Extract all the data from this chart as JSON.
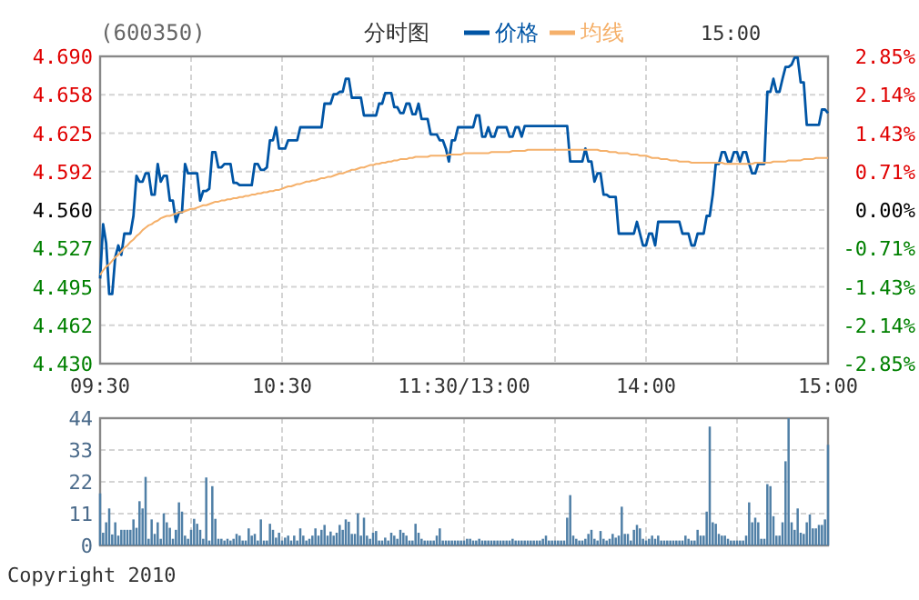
{
  "chart_data": [
    {
      "type": "line",
      "title": "(600350)",
      "subtitle": "分时图",
      "annotations": [
        "15:00"
      ],
      "legend": "top",
      "grid": true,
      "categories": [
        "09:30",
        null,
        null,
        null,
        null,
        null,
        null,
        null,
        null,
        null,
        null,
        null,
        null,
        null,
        null,
        null,
        null,
        null,
        null,
        null,
        null,
        null,
        null,
        null,
        null,
        null,
        null,
        null,
        null,
        null,
        null,
        null,
        null,
        null,
        null,
        null,
        null,
        null,
        null,
        null,
        null,
        null,
        null,
        null,
        null,
        null,
        null,
        null,
        null,
        null,
        null,
        null,
        null,
        null,
        null,
        null,
        null,
        null,
        null,
        null,
        "10:30",
        null,
        null,
        null,
        null,
        null,
        null,
        null,
        null,
        null,
        null,
        null,
        null,
        null,
        null,
        null,
        null,
        null,
        null,
        null,
        null,
        null,
        null,
        null,
        null,
        null,
        null,
        null,
        null,
        null,
        null,
        null,
        null,
        null,
        null,
        null,
        null,
        null,
        null,
        null,
        null,
        null,
        null,
        null,
        null,
        null,
        null,
        null,
        null,
        null,
        null,
        null,
        null,
        null,
        null,
        null,
        null,
        null,
        null,
        null,
        "11:30/13:00",
        null,
        null,
        null,
        null,
        null,
        null,
        null,
        null,
        null,
        null,
        null,
        null,
        null,
        null,
        null,
        null,
        null,
        null,
        null,
        null,
        null,
        null,
        null,
        null,
        null,
        null,
        null,
        null,
        null,
        null,
        null,
        null,
        null,
        null,
        null,
        null,
        null,
        null,
        null,
        null,
        null,
        null,
        null,
        null,
        null,
        null,
        null,
        null,
        null,
        null,
        null,
        null,
        null,
        null,
        null,
        null,
        null,
        null,
        null,
        "14:00",
        null,
        null,
        null,
        null,
        null,
        null,
        null,
        null,
        null,
        null,
        null,
        null,
        null,
        null,
        null,
        null,
        null,
        null,
        null,
        null,
        null,
        null,
        null,
        null,
        null,
        null,
        null,
        null,
        null,
        null,
        null,
        null,
        null,
        null,
        null,
        null,
        null,
        null,
        null,
        null,
        null,
        null,
        null,
        null,
        null,
        null,
        null,
        null,
        null,
        null,
        null,
        null,
        null,
        null,
        null,
        null,
        null,
        null,
        null,
        "15:00"
      ],
      "ylim": [
        4.43,
        4.69
      ],
      "yticks": [
        {
          "value": 4.69,
          "label": "4.690"
        },
        {
          "value": 4.6575,
          "label": "4.658"
        },
        {
          "value": 4.625,
          "label": "4.625"
        },
        {
          "value": 4.5925,
          "label": "4.592"
        },
        {
          "value": 4.56,
          "label": "4.560"
        },
        {
          "value": 4.5275,
          "label": "4.527"
        },
        {
          "value": 4.495,
          "label": "4.495"
        },
        {
          "value": 4.4625,
          "label": "4.462"
        },
        {
          "value": 4.43,
          "label": "4.430"
        }
      ],
      "y2lim": [
        -2.85,
        2.85
      ],
      "y2ticks": [
        {
          "value": 2.85,
          "label": "2.85%"
        },
        {
          "value": 2.1375,
          "label": "2.14%"
        },
        {
          "value": 1.425,
          "label": "1.43%"
        },
        {
          "value": 0.7125,
          "label": "0.71%"
        },
        {
          "value": 0,
          "label": "0.00%"
        },
        {
          "value": -0.7125,
          "label": "-0.71%"
        },
        {
          "value": -1.425,
          "label": "-1.43%"
        },
        {
          "value": -2.1375,
          "label": "-2.14%"
        },
        {
          "value": -2.85,
          "label": "-2.85%"
        }
      ],
      "series": [
        {
          "name": "价格",
          "color": "#0055a5",
          "values": [
            4.502,
            4.548,
            4.532,
            4.489,
            4.489,
            4.52,
            4.53,
            4.522,
            4.54,
            4.54,
            4.54,
            4.555,
            4.589,
            4.584,
            4.584,
            4.591,
            4.591,
            4.573,
            4.573,
            4.599,
            4.584,
            4.589,
            4.589,
            4.568,
            4.568,
            4.55,
            4.558,
            4.558,
            4.599,
            4.591,
            4.591,
            4.591,
            4.591,
            4.568,
            4.576,
            4.576,
            4.578,
            4.609,
            4.609,
            4.596,
            4.596,
            4.599,
            4.599,
            4.599,
            4.583,
            4.583,
            4.581,
            4.581,
            4.581,
            4.581,
            4.581,
            4.599,
            4.599,
            4.594,
            4.594,
            4.596,
            4.619,
            4.619,
            4.63,
            4.612,
            4.612,
            4.612,
            4.619,
            4.619,
            4.619,
            4.619,
            4.63,
            4.63,
            4.63,
            4.63,
            4.63,
            4.63,
            4.63,
            4.63,
            4.65,
            4.65,
            4.65,
            4.658,
            4.658,
            4.66,
            4.66,
            4.671,
            4.671,
            4.655,
            4.655,
            4.655,
            4.655,
            4.64,
            4.64,
            4.64,
            4.64,
            4.64,
            4.65,
            4.65,
            4.659,
            4.659,
            4.659,
            4.647,
            4.647,
            4.642,
            4.642,
            4.65,
            4.65,
            4.641,
            4.641,
            4.65,
            4.637,
            4.637,
            4.637,
            4.624,
            4.624,
            4.624,
            4.619,
            4.619,
            4.612,
            4.601,
            4.619,
            4.619,
            4.63,
            4.63,
            4.63,
            4.63,
            4.63,
            4.63,
            4.64,
            4.64,
            4.622,
            4.622,
            4.63,
            4.622,
            4.622,
            4.63,
            4.63,
            4.63,
            4.63,
            4.622,
            4.622,
            4.63,
            4.63,
            4.622,
            4.631,
            4.631,
            4.631,
            4.631,
            4.631,
            4.631,
            4.631,
            4.631,
            4.631,
            4.631,
            4.631,
            4.631,
            4.631,
            4.631,
            4.631,
            4.601,
            4.601,
            4.601,
            4.601,
            4.601,
            4.612,
            4.601,
            4.601,
            4.584,
            4.591,
            4.591,
            4.573,
            4.573,
            4.571,
            4.571,
            4.571,
            4.54,
            4.54,
            4.54,
            4.54,
            4.54,
            4.54,
            4.55,
            4.54,
            4.53,
            4.53,
            4.54,
            4.54,
            4.53,
            4.55,
            4.55,
            4.55,
            4.55,
            4.55,
            4.55,
            4.55,
            4.55,
            4.54,
            4.54,
            4.54,
            4.53,
            4.53,
            4.54,
            4.54,
            4.54,
            4.555,
            4.555,
            4.573,
            4.599,
            4.599,
            4.609,
            4.609,
            4.601,
            4.601,
            4.609,
            4.609,
            4.601,
            4.609,
            4.609,
            4.599,
            4.591,
            4.591,
            4.599,
            4.599,
            4.599,
            4.66,
            4.66,
            4.671,
            4.66,
            4.66,
            4.671,
            4.681,
            4.681,
            4.683,
            4.689,
            4.689,
            4.668,
            4.668,
            4.632,
            4.632,
            4.632,
            4.632,
            4.632,
            4.645,
            4.645,
            4.642
          ]
        },
        {
          "name": "均线",
          "color": "#f5b06a",
          "values": [
            4.505,
            4.509,
            4.512,
            4.514,
            4.517,
            4.52,
            4.522,
            4.525,
            4.528,
            4.53,
            4.533,
            4.535,
            4.538,
            4.54,
            4.543,
            4.545,
            4.547,
            4.548,
            4.55,
            4.551,
            4.553,
            4.554,
            4.555,
            4.555,
            4.556,
            4.557,
            4.558,
            4.558,
            4.559,
            4.56,
            4.561,
            4.561,
            4.562,
            4.563,
            4.564,
            4.564,
            4.565,
            4.566,
            4.567,
            4.567,
            4.568,
            4.568,
            4.569,
            4.569,
            4.57,
            4.57,
            4.571,
            4.571,
            4.572,
            4.572,
            4.573,
            4.573,
            4.574,
            4.574,
            4.575,
            4.575,
            4.576,
            4.576,
            4.577,
            4.577,
            4.578,
            4.579,
            4.58,
            4.58,
            4.581,
            4.582,
            4.582,
            4.583,
            4.584,
            4.584,
            4.585,
            4.585,
            4.586,
            4.587,
            4.587,
            4.588,
            4.588,
            4.589,
            4.59,
            4.591,
            4.591,
            4.592,
            4.593,
            4.594,
            4.594,
            4.595,
            4.596,
            4.596,
            4.597,
            4.598,
            4.598,
            4.599,
            4.599,
            4.6,
            4.6,
            4.601,
            4.601,
            4.602,
            4.602,
            4.603,
            4.603,
            4.603,
            4.604,
            4.604,
            4.605,
            4.605,
            4.605,
            4.605,
            4.605,
            4.606,
            4.606,
            4.606,
            4.606,
            4.606,
            4.606,
            4.607,
            4.607,
            4.607,
            4.607,
            4.607,
            4.608,
            4.608,
            4.608,
            4.608,
            4.608,
            4.608,
            4.608,
            4.608,
            4.608,
            4.609,
            4.609,
            4.609,
            4.609,
            4.609,
            4.609,
            4.609,
            4.61,
            4.61,
            4.61,
            4.61,
            4.61,
            4.611,
            4.611,
            4.611,
            4.611,
            4.611,
            4.611,
            4.611,
            4.611,
            4.611,
            4.611,
            4.611,
            4.611,
            4.611,
            4.611,
            4.611,
            4.611,
            4.611,
            4.611,
            4.611,
            4.611,
            4.611,
            4.611,
            4.611,
            4.611,
            4.61,
            4.61,
            4.61,
            4.609,
            4.609,
            4.609,
            4.608,
            4.608,
            4.608,
            4.608,
            4.607,
            4.607,
            4.607,
            4.606,
            4.606,
            4.606,
            4.605,
            4.604,
            4.604,
            4.604,
            4.603,
            4.603,
            4.603,
            4.602,
            4.602,
            4.602,
            4.601,
            4.601,
            4.601,
            4.601,
            4.6,
            4.6,
            4.6,
            4.6,
            4.6,
            4.6,
            4.6,
            4.6,
            4.6,
            4.6,
            4.6,
            4.599,
            4.599,
            4.599,
            4.599,
            4.599,
            4.599,
            4.599,
            4.599,
            4.599,
            4.599,
            4.6,
            4.6,
            4.6,
            4.6,
            4.6,
            4.6,
            4.601,
            4.601,
            4.601,
            4.601,
            4.601,
            4.602,
            4.602,
            4.602,
            4.602,
            4.602,
            4.603,
            4.603,
            4.603,
            4.603,
            4.604,
            4.604,
            4.604,
            4.604,
            4.604
          ]
        }
      ]
    },
    {
      "type": "bar",
      "annotations": [
        "Copyright 2010"
      ],
      "grid": true,
      "tick_labels": "y",
      "categories": [
        null,
        null,
        null,
        null,
        null,
        null,
        null,
        null,
        null,
        null,
        null,
        null,
        null,
        null,
        null,
        null,
        null,
        null,
        null,
        null,
        null,
        null,
        null,
        null,
        null,
        null,
        null,
        null,
        null,
        null,
        null,
        null,
        null,
        null,
        null,
        null,
        null,
        null,
        null,
        null,
        null,
        null,
        null,
        null,
        null,
        null,
        null,
        null,
        null,
        null,
        null,
        null,
        null,
        null,
        null,
        null,
        null,
        null,
        null,
        null,
        null,
        null,
        null,
        null,
        null,
        null,
        null,
        null,
        null,
        null,
        null,
        null,
        null,
        null,
        null,
        null,
        null,
        null,
        null,
        null,
        null,
        null,
        null,
        null,
        null,
        null,
        null,
        null,
        null,
        null,
        null,
        null,
        null,
        null,
        null,
        null,
        null,
        null,
        null,
        null,
        null,
        null,
        null,
        null,
        null,
        null,
        null,
        null,
        null,
        null,
        null,
        null,
        null,
        null,
        null,
        null,
        null,
        null,
        null,
        null,
        null,
        null,
        null,
        null,
        null,
        null,
        null,
        null,
        null,
        null,
        null,
        null,
        null,
        null,
        null,
        null,
        null,
        null,
        null,
        null,
        null,
        null,
        null,
        null,
        null,
        null,
        null,
        null,
        null,
        null,
        null,
        null,
        null,
        null,
        null,
        null,
        null,
        null,
        null,
        null,
        null,
        null,
        null,
        null,
        null,
        null,
        null,
        null,
        null,
        null,
        null,
        null,
        null,
        null,
        null,
        null,
        null,
        null,
        null,
        null,
        null,
        null,
        null,
        null,
        null,
        null,
        null,
        null,
        null,
        null,
        null,
        null,
        null,
        null,
        null,
        null,
        null,
        null,
        null,
        null,
        null,
        null,
        null,
        null,
        null,
        null,
        null,
        null,
        null,
        null,
        null,
        null,
        null,
        null,
        null,
        null,
        null,
        null,
        null,
        null,
        null,
        null,
        null,
        null,
        null,
        null,
        null,
        null,
        null,
        null,
        null,
        null,
        null,
        null,
        null,
        null,
        null,
        null,
        null,
        null,
        null
      ],
      "ylim": [
        0,
        44
      ],
      "yticks": [
        0,
        11,
        22,
        33,
        44
      ],
      "series": [
        {
          "color": "#4f7fa6",
          "values": [
            18,
            4.4,
            8,
            12.8,
            3.8,
            8,
            3.4,
            5.4,
            5.4,
            5.4,
            5.4,
            9,
            6.1,
            15.3,
            12.8,
            23.7,
            2.3,
            9,
            4,
            8,
            2.3,
            11.1,
            8,
            6.1,
            2.3,
            5.4,
            14.9,
            11.7,
            3.4,
            2.3,
            5.4,
            9.2,
            7.5,
            5.4,
            2.3,
            23.5,
            1.7,
            20.5,
            9.2,
            2.3,
            2.3,
            1.7,
            2.3,
            1.7,
            2.3,
            4,
            3.4,
            1.7,
            1.7,
            5.9,
            3.4,
            4,
            1.7,
            9,
            1.7,
            1.7,
            7.5,
            5.4,
            2.7,
            4.4,
            1.7,
            2.7,
            3.4,
            1.7,
            3.4,
            1.7,
            5.9,
            3.4,
            1.7,
            2.3,
            3.4,
            5.9,
            3.4,
            5.4,
            7.1,
            3.4,
            4.8,
            3.4,
            4.4,
            7.1,
            5.4,
            9,
            8.2,
            4,
            4,
            11.1,
            3.4,
            9.6,
            3.4,
            2.3,
            4.4,
            5,
            1.7,
            1.7,
            2.7,
            1.7,
            4.4,
            3.4,
            2.3,
            5.4,
            4.4,
            3.4,
            1.7,
            1.7,
            7.5,
            4.4,
            2.3,
            1.7,
            1.7,
            1.7,
            1.7,
            3.4,
            5.9,
            1.7,
            1.7,
            1.7,
            1.7,
            1.7,
            1.7,
            1.7,
            1.7,
            2.3,
            2.3,
            1.7,
            1.7,
            2.3,
            1.7,
            1.7,
            1.7,
            1.7,
            1.7,
            1.7,
            1.7,
            1.7,
            1.7,
            1.7,
            2.3,
            1.7,
            1.7,
            1.7,
            1.7,
            1.7,
            1.7,
            1.7,
            1.7,
            1.7,
            2.3,
            3.4,
            1.7,
            1.7,
            1.7,
            1.7,
            1.7,
            1.7,
            9.6,
            17.4,
            3.4,
            2.3,
            1.7,
            1.7,
            2.3,
            4,
            5.4,
            2.3,
            1.7,
            5,
            2.3,
            1.7,
            2.3,
            4,
            2.7,
            3.4,
            13.4,
            4,
            4,
            1.7,
            5.4,
            7.1,
            5.9,
            2.3,
            1.7,
            2.3,
            3.4,
            2.3,
            3.4,
            1.7,
            1.7,
            1.7,
            1.7,
            1.7,
            1.7,
            1.7,
            1.7,
            3.4,
            2.3,
            1.7,
            1.7,
            5.4,
            3.4,
            3.4,
            11.7,
            41.1,
            8,
            7.5,
            4,
            3.4,
            3.4,
            2.3,
            1.7,
            1.7,
            1.7,
            1.7,
            1.7,
            3.4,
            14.9,
            8,
            9.6,
            8,
            2.3,
            2.3,
            21.2,
            20.5,
            10.1,
            3.4,
            3.4,
            8,
            29.1,
            44,
            8,
            5.4,
            12.8,
            4.4,
            4,
            8,
            10.7,
            5.9,
            5.9,
            7.1,
            7.1,
            9,
            34.8
          ]
        }
      ]
    }
  ]
}
